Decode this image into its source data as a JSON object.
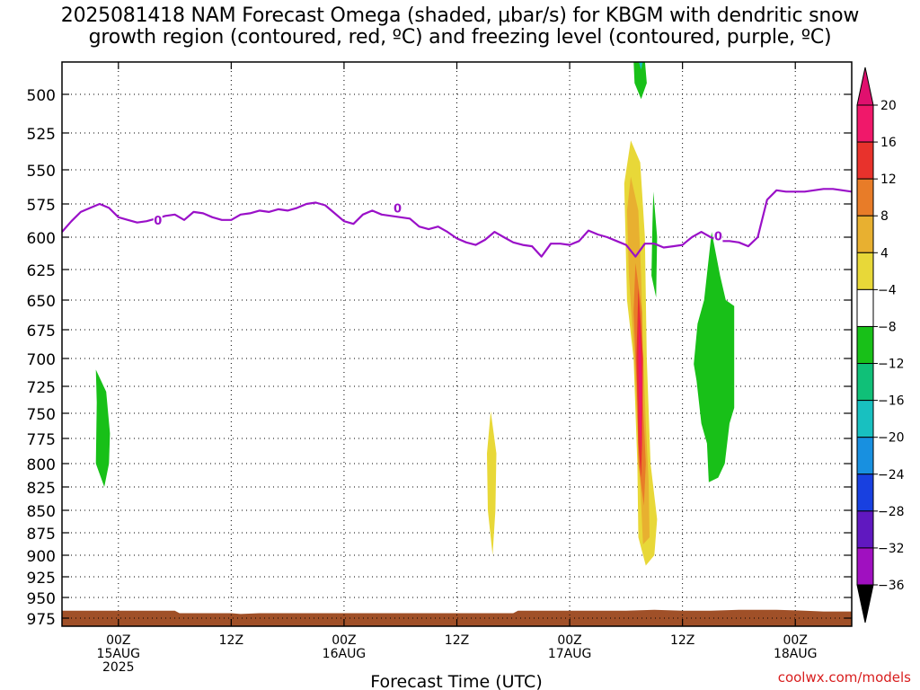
{
  "chart_data": {
    "type": "heatmap",
    "title_lines": [
      "2025081418 NAM Forecast Omega (shaded, μbar/s) for KBGM with dendritic snow",
      "growth region (contoured, red, ºC) and freezing level (contoured, purple, ºC)"
    ],
    "xlabel": "Forecast Time (UTC)",
    "ylabel": "",
    "y_axis": {
      "unit": "hPa",
      "ticks": [
        500,
        525,
        550,
        575,
        600,
        625,
        650,
        675,
        700,
        725,
        750,
        775,
        800,
        825,
        850,
        875,
        900,
        925,
        950,
        975
      ],
      "range": [
        480,
        990
      ],
      "grid": "dotted"
    },
    "x_axis": {
      "unit": "hours from 2025-08-14 18Z",
      "range": [
        0,
        84
      ],
      "ticks": [
        {
          "hour": 6,
          "label": [
            "00Z",
            "15AUG",
            "2025"
          ]
        },
        {
          "hour": 18,
          "label": [
            "12Z"
          ]
        },
        {
          "hour": 30,
          "label": [
            "00Z",
            "16AUG"
          ]
        },
        {
          "hour": 42,
          "label": [
            "12Z"
          ]
        },
        {
          "hour": 54,
          "label": [
            "00Z",
            "17AUG"
          ]
        },
        {
          "hour": 66,
          "label": [
            "12Z"
          ]
        },
        {
          "hour": 78,
          "label": [
            "00Z",
            "18AUG"
          ]
        }
      ]
    },
    "colorbar": {
      "levels": [
        20,
        16,
        12,
        8,
        4,
        -4,
        -8,
        -12,
        -16,
        -20,
        -24,
        -28,
        -32,
        -36
      ],
      "colors": [
        "#f0186a",
        "#e8322c",
        "#e87c28",
        "#e8b030",
        "#e8d838",
        "#ffffff",
        "#18c018",
        "#10c078",
        "#18c0c0",
        "#1890e0",
        "#1840e0",
        "#6018c0",
        "#a010c0",
        "#a0a0a0"
      ],
      "top_color": "#e0106e",
      "bottom_color": "#000000"
    },
    "omega_regions": [
      {
        "color": "#18c018",
        "polygon": [
          [
            3.6,
            710
          ],
          [
            4.7,
            730
          ],
          [
            5.1,
            770
          ],
          [
            5.0,
            800
          ],
          [
            4.5,
            825
          ],
          [
            3.6,
            800
          ],
          [
            3.7,
            740
          ]
        ]
      },
      {
        "color": "#e8d838",
        "polygon": [
          [
            45.6,
            748
          ],
          [
            46.2,
            790
          ],
          [
            46.1,
            850
          ],
          [
            45.8,
            900
          ],
          [
            45.3,
            850
          ],
          [
            45.2,
            790
          ]
        ]
      },
      {
        "color": "#18c018",
        "polygon": [
          [
            60.8,
            470
          ],
          [
            62.0,
            470
          ],
          [
            62.2,
            490
          ],
          [
            61.6,
            503
          ],
          [
            60.9,
            490
          ]
        ]
      },
      {
        "color": "#18c0c0",
        "polygon": [
          [
            61.3,
            470
          ],
          [
            61.8,
            470
          ],
          [
            61.6,
            478
          ]
        ]
      },
      {
        "color": "#e8d838",
        "polygon": [
          [
            60.5,
            530
          ],
          [
            61.5,
            545
          ],
          [
            62.0,
            600
          ],
          [
            62.2,
            700
          ],
          [
            62.6,
            800
          ],
          [
            63.3,
            860
          ],
          [
            63.0,
            900
          ],
          [
            62.1,
            912
          ],
          [
            61.3,
            880
          ],
          [
            61.2,
            800
          ],
          [
            60.8,
            700
          ],
          [
            60.1,
            650
          ],
          [
            59.8,
            560
          ]
        ]
      },
      {
        "color": "#e8b030",
        "polygon": [
          [
            60.5,
            555
          ],
          [
            61.3,
            580
          ],
          [
            61.6,
            630
          ],
          [
            61.8,
            690
          ],
          [
            62.1,
            760
          ],
          [
            62.4,
            820
          ],
          [
            62.5,
            880
          ],
          [
            61.8,
            888
          ],
          [
            61.5,
            820
          ],
          [
            61.2,
            760
          ],
          [
            60.8,
            690
          ],
          [
            60.3,
            630
          ],
          [
            60.1,
            580
          ]
        ]
      },
      {
        "color": "#e87c28",
        "polygon": [
          [
            61.0,
            620
          ],
          [
            61.7,
            660
          ],
          [
            61.8,
            740
          ],
          [
            62.1,
            800
          ],
          [
            61.9,
            845
          ],
          [
            61.3,
            800
          ],
          [
            61.2,
            740
          ],
          [
            60.8,
            660
          ]
        ]
      },
      {
        "color": "#e8322c",
        "polygon": [
          [
            61.3,
            640
          ],
          [
            61.8,
            700
          ],
          [
            61.7,
            780
          ],
          [
            61.6,
            815
          ],
          [
            61.3,
            780
          ],
          [
            61.1,
            700
          ]
        ]
      },
      {
        "color": "#f0186a",
        "polygon": [
          [
            61.4,
            660
          ],
          [
            61.7,
            720
          ],
          [
            61.6,
            790
          ],
          [
            61.4,
            760
          ],
          [
            61.3,
            700
          ]
        ]
      },
      {
        "color": "#18c018",
        "polygon": [
          [
            62.9,
            566
          ],
          [
            63.3,
            600
          ],
          [
            63.2,
            648
          ],
          [
            62.7,
            630
          ],
          [
            62.8,
            590
          ]
        ]
      },
      {
        "color": "#18c018",
        "polygon": [
          [
            69.1,
            596
          ],
          [
            70.0,
            630
          ],
          [
            70.6,
            650
          ],
          [
            71.5,
            655
          ],
          [
            71.5,
            745
          ],
          [
            71.0,
            760
          ],
          [
            70.5,
            800
          ],
          [
            69.8,
            815
          ],
          [
            68.8,
            820
          ],
          [
            68.6,
            780
          ],
          [
            68.0,
            760
          ],
          [
            67.5,
            720
          ],
          [
            67.2,
            705
          ],
          [
            67.6,
            670
          ],
          [
            68.3,
            650
          ]
        ]
      }
    ],
    "freezing_level": {
      "label": "0",
      "series": [
        {
          "x": [
            0,
            1,
            2,
            3,
            4,
            5,
            6,
            7,
            8,
            9,
            10,
            11,
            12,
            13,
            14,
            15,
            16,
            17,
            18,
            19,
            20,
            21,
            22,
            23,
            24,
            25,
            26,
            27,
            28,
            29,
            30,
            31,
            32,
            33,
            34,
            35,
            36,
            37,
            38,
            39,
            40,
            41,
            42,
            43,
            44,
            45,
            46,
            47,
            48,
            49,
            50,
            51,
            52,
            53,
            54,
            55,
            56,
            57,
            58,
            59,
            60,
            61,
            62,
            63,
            64,
            65,
            66,
            67,
            68,
            69,
            70,
            71,
            72,
            73,
            74,
            75,
            76,
            77,
            78,
            79,
            80,
            81,
            82,
            83,
            84
          ],
          "y": [
            596,
            588,
            581,
            578,
            575,
            578,
            585,
            587,
            589,
            588,
            586,
            584,
            583,
            587,
            581,
            582,
            585,
            587,
            587,
            583,
            582,
            580,
            581,
            579,
            580,
            578,
            575,
            574,
            576,
            582,
            588,
            590,
            583,
            580,
            583,
            584,
            585,
            586,
            592,
            594,
            592,
            596,
            601,
            604,
            606,
            602,
            596,
            600,
            604,
            606,
            607,
            615,
            605,
            605,
            606,
            603,
            595,
            598,
            600,
            603,
            606,
            615,
            605,
            605,
            608,
            607,
            606,
            600,
            596,
            600,
            603,
            603,
            604,
            607,
            600,
            572,
            565,
            566,
            566,
            566,
            565,
            564,
            564,
            565,
            566
          ]
        }
      ],
      "labels_at": [
        {
          "x": 10.2,
          "y": 587
        },
        {
          "x": 35.7,
          "y": 578
        },
        {
          "x": 69.8,
          "y": 599
        }
      ]
    },
    "terrain": {
      "color": "#a05028",
      "surface": [
        [
          0,
          966
        ],
        [
          6,
          966
        ],
        [
          12,
          966
        ],
        [
          12.5,
          969
        ],
        [
          18,
          969
        ],
        [
          19,
          970
        ],
        [
          21,
          969
        ],
        [
          24,
          969
        ],
        [
          30,
          969
        ],
        [
          36,
          969
        ],
        [
          42,
          969
        ],
        [
          48,
          969
        ],
        [
          48.5,
          966
        ],
        [
          54,
          966
        ],
        [
          57,
          966
        ],
        [
          60,
          966
        ],
        [
          63,
          965
        ],
        [
          66,
          966
        ],
        [
          69,
          966
        ],
        [
          72,
          965
        ],
        [
          76,
          965
        ],
        [
          79,
          966
        ],
        [
          81,
          967
        ],
        [
          84,
          967
        ]
      ]
    }
  },
  "credit": "coolwx.com/models"
}
